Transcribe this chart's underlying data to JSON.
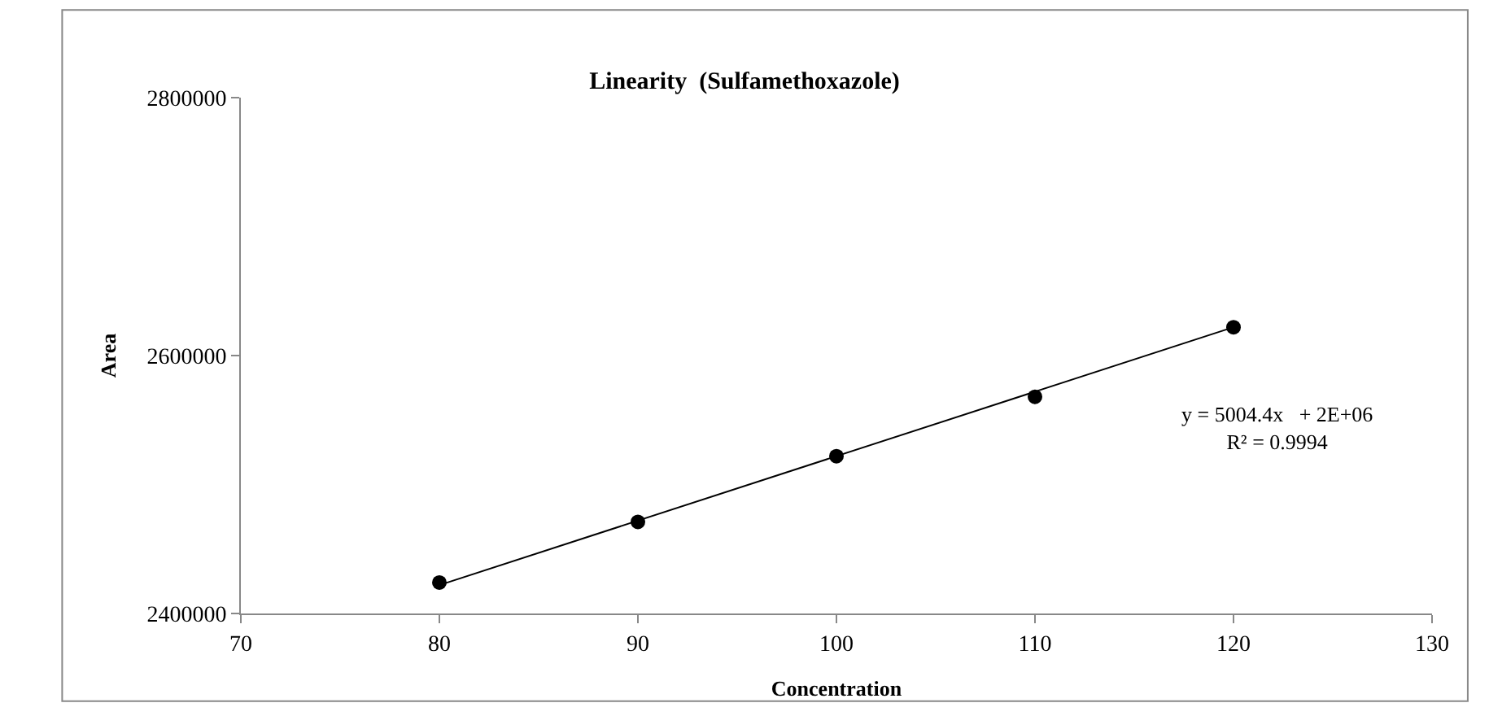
{
  "chart_data": {
    "type": "scatter",
    "title": "Linearity  (Sulfamethoxazole)",
    "xlabel": "Concentration",
    "ylabel": "Area",
    "x": [
      80,
      90,
      100,
      110,
      120
    ],
    "series": [
      {
        "color": "#000000",
        "marker": "circle",
        "values": [
          2424000,
          2471000,
          2522000,
          2568000,
          2622000
        ]
      },
      {
        "type": "line",
        "color": "#000000",
        "x": [
          80,
          120
        ],
        "values": [
          2422000,
          2622000
        ]
      }
    ],
    "annotations": [
      "y = 5004.4x   + 2E+06\nR² = 0.9994"
    ],
    "xlim": [
      70,
      130
    ],
    "xticks": [
      70,
      80,
      90,
      100,
      110,
      120,
      130
    ],
    "ylim": [
      2400000,
      2800000
    ],
    "yticks": [
      2400000,
      2600000,
      2800000
    ],
    "line_style": "solid"
  }
}
